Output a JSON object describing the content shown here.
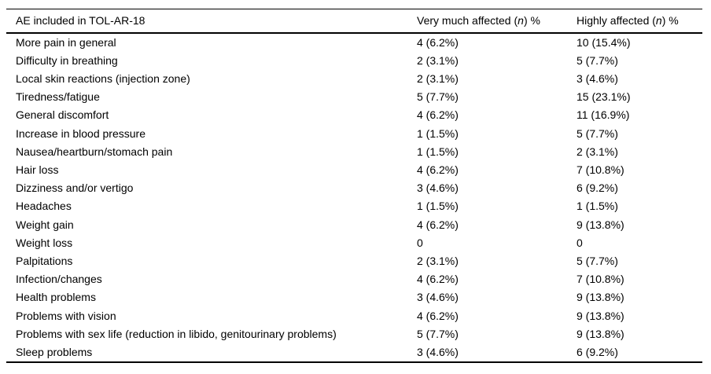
{
  "colors": {
    "background": "#ffffff",
    "text": "#000000",
    "rule": "#000000"
  },
  "table": {
    "header": {
      "col1": "AE included in TOL-AR-18",
      "col2_pre": "Very much affected (",
      "col2_italic": "n",
      "col2_post": ") %",
      "col3_pre": "Highly affected (",
      "col3_italic": "n",
      "col3_post": ") %"
    },
    "rows": [
      {
        "ae": "More pain in general",
        "very_much": "4 (6.2%)",
        "highly": "10 (15.4%)"
      },
      {
        "ae": "Difficulty in breathing",
        "very_much": "2 (3.1%)",
        "highly": "5 (7.7%)"
      },
      {
        "ae": "Local skin reactions (injection zone)",
        "very_much": "2 (3.1%)",
        "highly": "3 (4.6%)"
      },
      {
        "ae": "Tiredness/fatigue",
        "very_much": "5 (7.7%)",
        "highly": "15 (23.1%)"
      },
      {
        "ae": "General discomfort",
        "very_much": "4 (6.2%)",
        "highly": "11 (16.9%)"
      },
      {
        "ae": "Increase in blood pressure",
        "very_much": "1 (1.5%)",
        "highly": "5 (7.7%)"
      },
      {
        "ae": "Nausea/heartburn/stomach pain",
        "very_much": "1 (1.5%)",
        "highly": "2 (3.1%)"
      },
      {
        "ae": "Hair loss",
        "very_much": "4 (6.2%)",
        "highly": "7 (10.8%)"
      },
      {
        "ae": "Dizziness and/or vertigo",
        "very_much": "3 (4.6%)",
        "highly": "6 (9.2%)"
      },
      {
        "ae": "Headaches",
        "very_much": "1 (1.5%)",
        "highly": "1 (1.5%)"
      },
      {
        "ae": "Weight gain",
        "very_much": "4 (6.2%)",
        "highly": "9 (13.8%)"
      },
      {
        "ae": "Weight loss",
        "very_much": "0",
        "highly": "0"
      },
      {
        "ae": "Palpitations",
        "very_much": "2 (3.1%)",
        "highly": "5 (7.7%)"
      },
      {
        "ae": "Infection/changes",
        "very_much": "4 (6.2%)",
        "highly": "7 (10.8%)"
      },
      {
        "ae": "Health problems",
        "very_much": "3 (4.6%)",
        "highly": "9 (13.8%)"
      },
      {
        "ae": "Problems with vision",
        "very_much": "4 (6.2%)",
        "highly": "9 (13.8%)"
      },
      {
        "ae": "Problems with sex life (reduction in libido, genitourinary problems)",
        "very_much": "5 (7.7%)",
        "highly": "9 (13.8%)"
      },
      {
        "ae": "Sleep problems",
        "very_much": "3 (4.6%)",
        "highly": "6 (9.2%)"
      }
    ]
  }
}
